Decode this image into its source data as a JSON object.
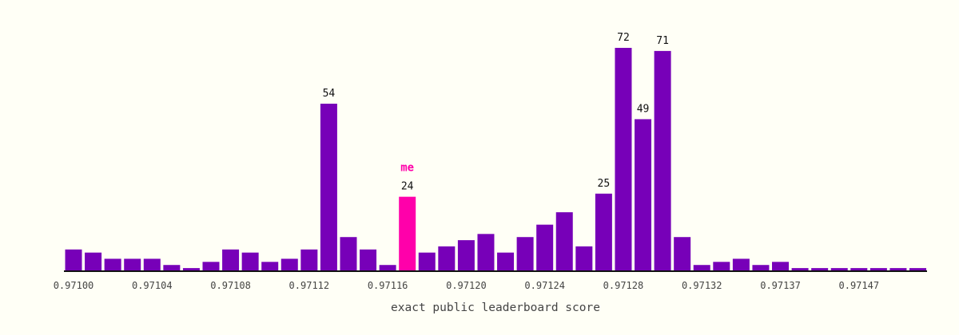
{
  "chart_data": {
    "type": "bar",
    "title": "",
    "xlabel": "exact public leaderboard score",
    "ylabel": "",
    "grid": false,
    "colors": {
      "bar": "#7700b8",
      "highlight": "#ff00aa",
      "axis": "#111111",
      "background": "#fffff6"
    },
    "highlight": {
      "index": 17,
      "label": "me"
    },
    "tick_labels": [
      {
        "index": 0,
        "label": "0.97100"
      },
      {
        "index": 4,
        "label": "0.97104"
      },
      {
        "index": 8,
        "label": "0.97108"
      },
      {
        "index": 12,
        "label": "0.97112"
      },
      {
        "index": 16,
        "label": "0.97116"
      },
      {
        "index": 20,
        "label": "0.97120"
      },
      {
        "index": 24,
        "label": "0.97124"
      },
      {
        "index": 28,
        "label": "0.97128"
      },
      {
        "index": 32,
        "label": "0.97132"
      },
      {
        "index": 36,
        "label": "0.97137"
      },
      {
        "index": 40,
        "label": "0.97147"
      }
    ],
    "values": [
      7,
      6,
      4,
      4,
      4,
      2,
      1,
      3,
      7,
      6,
      3,
      4,
      7,
      54,
      11,
      7,
      2,
      24,
      6,
      8,
      10,
      12,
      6,
      11,
      15,
      19,
      8,
      25,
      72,
      49,
      71,
      11,
      2,
      3,
      4,
      2,
      3,
      1,
      1,
      1,
      1,
      1,
      1,
      1
    ],
    "data_labels": [
      {
        "index": 13,
        "text": "54"
      },
      {
        "index": 17,
        "text": "24"
      },
      {
        "index": 27,
        "text": "25"
      },
      {
        "index": 28,
        "text": "72"
      },
      {
        "index": 29,
        "text": "49"
      },
      {
        "index": 30,
        "text": "71"
      }
    ]
  }
}
